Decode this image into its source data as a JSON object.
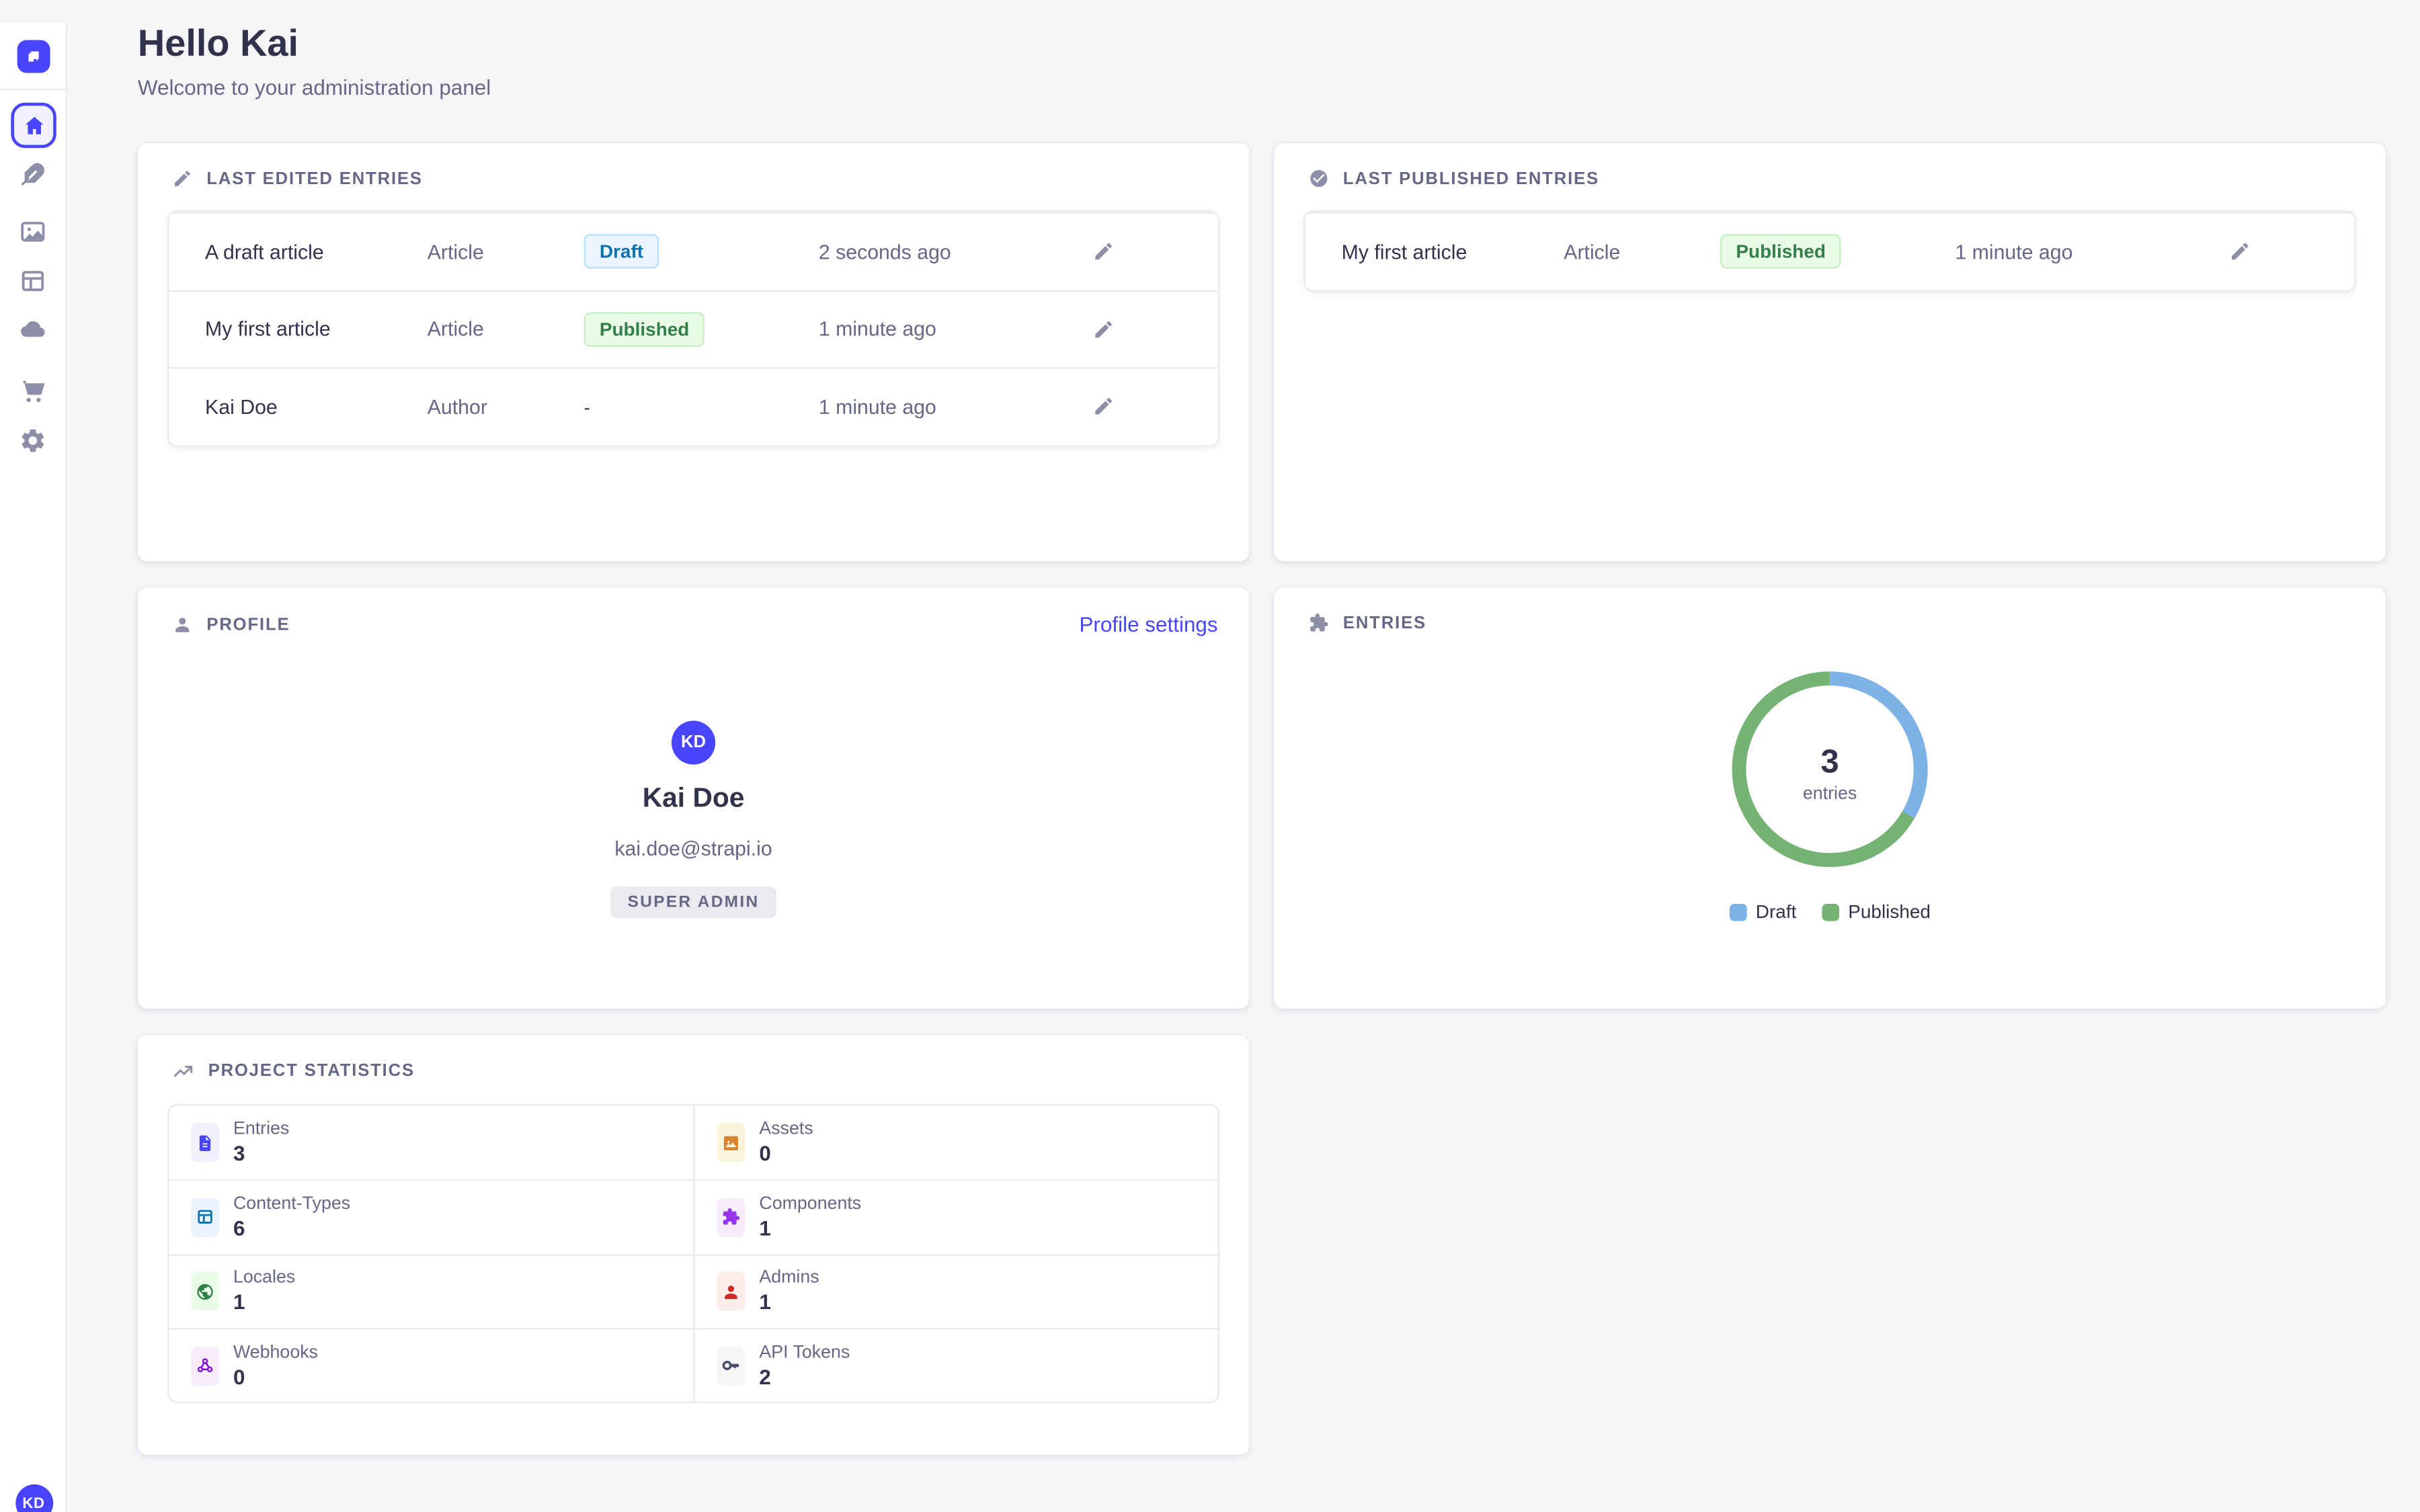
{
  "colors": {
    "primary": "#4945ff",
    "page_bg": "#f6f6f9",
    "text_dark": "#32324d",
    "text_muted": "#666687",
    "icon_muted": "#8e8ea9",
    "border": "#eaeaef",
    "draft_badge": {
      "bg": "#eaf5ff",
      "border": "#b8e1ff",
      "text": "#0c75af"
    },
    "published_badge": {
      "bg": "#eafbe7",
      "border": "#c6f0c2",
      "text": "#328048"
    }
  },
  "sidebar": {
    "logo_icon": "strapi-logo-icon",
    "nav_icons": [
      "home-icon",
      "feather-icon",
      "media-library-icon",
      "layout-icon",
      "cloud-icon",
      "cart-icon",
      "gear-icon"
    ],
    "active_item": "home",
    "user_initials": "KD"
  },
  "header": {
    "title": "Hello Kai",
    "subtitle": "Welcome to your administration panel"
  },
  "cards": {
    "last_edited": {
      "title": "Last edited entries",
      "icon": "pencil-icon",
      "rows": [
        {
          "name": "A draft article",
          "type": "Article",
          "status": "Draft",
          "status_kind": "draft",
          "time": "2 seconds ago"
        },
        {
          "name": "My first article",
          "type": "Article",
          "status": "Published",
          "status_kind": "published",
          "time": "1 minute ago"
        },
        {
          "name": "Kai Doe",
          "type": "Author",
          "status": "-",
          "status_kind": "none",
          "time": "1 minute ago"
        }
      ]
    },
    "last_published": {
      "title": "Last published entries",
      "icon": "check-circle-icon",
      "rows": [
        {
          "name": "My first article",
          "type": "Article",
          "status": "Published",
          "status_kind": "published",
          "time": "1 minute ago"
        }
      ]
    },
    "profile": {
      "title": "Profile",
      "icon": "user-icon",
      "link_label": "Profile settings",
      "initials": "KD",
      "name": "Kai Doe",
      "email": "kai.doe@strapi.io",
      "role": "SUPER ADMIN"
    },
    "entries": {
      "title": "Entries",
      "icon": "puzzle-icon"
    },
    "stats": {
      "title": "Project Statistics",
      "icon": "trending-up-icon",
      "items": [
        {
          "label": "Entries",
          "value": "3",
          "icon": "file-icon"
        },
        {
          "label": "Assets",
          "value": "0",
          "icon": "image-icon"
        },
        {
          "label": "Content-Types",
          "value": "6",
          "icon": "layout-icon"
        },
        {
          "label": "Components",
          "value": "1",
          "icon": "puzzle-icon"
        },
        {
          "label": "Locales",
          "value": "1",
          "icon": "globe-icon"
        },
        {
          "label": "Admins",
          "value": "1",
          "icon": "person-icon"
        },
        {
          "label": "Webhooks",
          "value": "0",
          "icon": "webhook-icon"
        },
        {
          "label": "API Tokens",
          "value": "2",
          "icon": "key-icon"
        }
      ]
    }
  },
  "chart_data": {
    "type": "pie",
    "variant": "donut",
    "title": "Entries",
    "center_value": "3",
    "center_label": "entries",
    "segments": [
      {
        "label": "Draft",
        "value": 1,
        "color": "#7db2e6"
      },
      {
        "label": "Published",
        "value": 2,
        "color": "#74b374"
      }
    ],
    "total": 3,
    "legend_position": "bottom"
  }
}
